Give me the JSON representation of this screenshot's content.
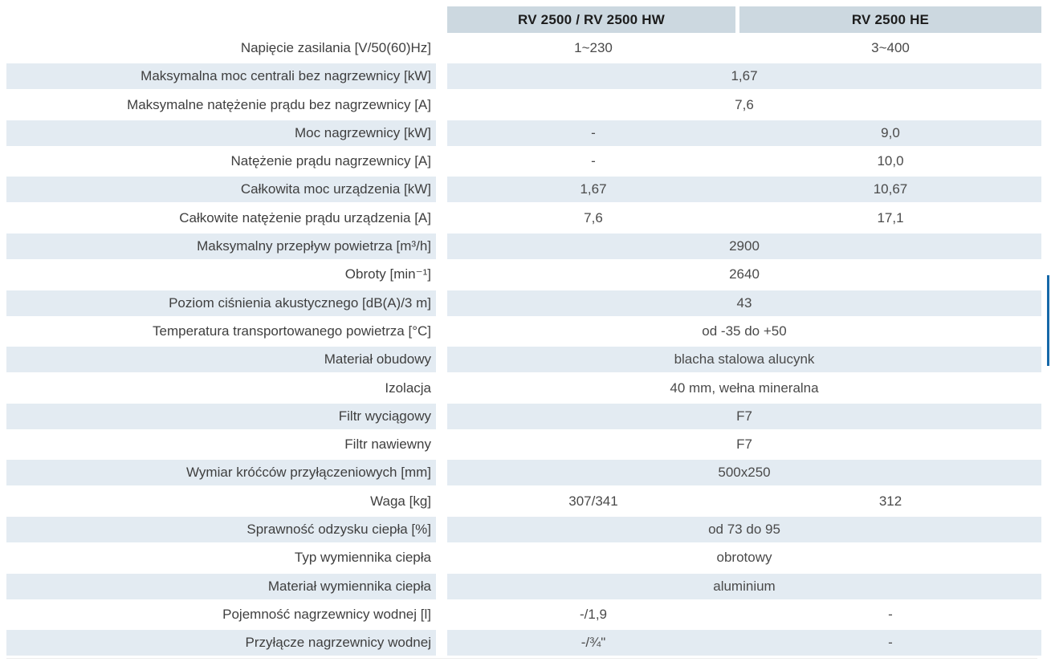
{
  "table": {
    "columns": [
      "RV 2500 / RV 2500 HW",
      "RV 2500 HE"
    ],
    "rows": [
      {
        "label": "Napięcie zasilania [V/50(60)Hz]",
        "values": [
          "1~230",
          "3~400"
        ]
      },
      {
        "label": "Maksymalna moc centrali bez nagrzewnicy [kW]",
        "values": [
          "1,67"
        ]
      },
      {
        "label": "Maksymalne natężenie prądu bez nagrzewnicy [A]",
        "values": [
          "7,6"
        ]
      },
      {
        "label": "Moc nagrzewnicy [kW]",
        "values": [
          "-",
          "9,0"
        ]
      },
      {
        "label": "Natężenie prądu nagrzewnicy [A]",
        "values": [
          "-",
          "10,0"
        ]
      },
      {
        "label": "Całkowita moc urządzenia [kW]",
        "values": [
          "1,67",
          "10,67"
        ]
      },
      {
        "label": "Całkowite natężenie prądu urządzenia [A]",
        "values": [
          "7,6",
          "17,1"
        ]
      },
      {
        "label": "Maksymalny przepływ powietrza [m³/h]",
        "values": [
          "2900"
        ]
      },
      {
        "label": "Obroty [min⁻¹]",
        "values": [
          "2640"
        ]
      },
      {
        "label": "Poziom ciśnienia akustycznego [dB(A)/3 m]",
        "values": [
          "43"
        ]
      },
      {
        "label": "Temperatura transportowanego powietrza [°C]",
        "values": [
          "od -35 do +50"
        ]
      },
      {
        "label": "Materiał obudowy",
        "values": [
          "blacha stalowa alucynk"
        ]
      },
      {
        "label": "Izolacja",
        "values": [
          "40 mm, wełna mineralna"
        ]
      },
      {
        "label": "Filtr wyciągowy",
        "values": [
          "F7"
        ]
      },
      {
        "label": "Filtr nawiewny",
        "values": [
          "F7"
        ]
      },
      {
        "label": "Wymiar króćców przyłączeniowych [mm]",
        "values": [
          "500x250"
        ]
      },
      {
        "label": "Waga [kg]",
        "values": [
          "307/341",
          "312"
        ]
      },
      {
        "label": "Sprawność odzysku ciepła [%]",
        "values": [
          "od 73 do 95"
        ]
      },
      {
        "label": "Typ wymiennika ciepła",
        "values": [
          "obrotowy"
        ]
      },
      {
        "label": "Materiał wymiennika ciepła",
        "values": [
          "aluminium"
        ]
      },
      {
        "label": "Pojemność nagrzewnicy wodnej [l]",
        "values": [
          "-/1,9",
          "-"
        ]
      },
      {
        "label": "Przyłącze nagrzewnicy wodnej",
        "values": [
          "-/¾\"",
          "-"
        ]
      }
    ]
  },
  "colors": {
    "header_bg": "#ccd8e0",
    "stripe_bg": "#e3ebf2",
    "header_text": "#1c1c1c",
    "body_text": "#3f3f3f",
    "edge_marker_blue": "#1568a8"
  }
}
